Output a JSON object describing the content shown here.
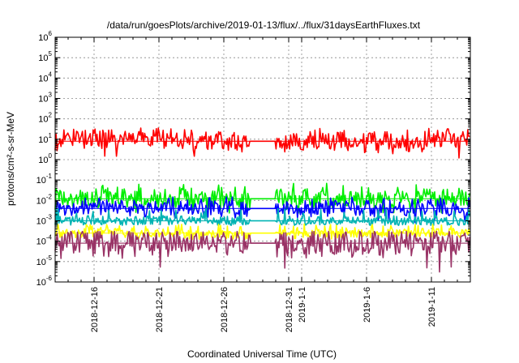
{
  "chart_data": {
    "type": "line",
    "title": "/data/run/goesPlots/archive/2019-01-13/flux/../flux/31daysEarthFluxes.txt",
    "xlabel": "Coordinated Universal Time (UTC)",
    "ylabel": "protons/cm²-s-sr-MeV",
    "y_scale": "log",
    "ylim": [
      1e-06,
      1000000.0
    ],
    "x_range": [
      "2018-12-13",
      "2019-01-14"
    ],
    "grid": true,
    "x_ticks": [
      {
        "date": "2018-12-16",
        "label": "2018-12-16"
      },
      {
        "date": "2018-12-21",
        "label": "2018-12-21"
      },
      {
        "date": "2018-12-26",
        "label": "2018-12-26"
      },
      {
        "date": "2018-12-31",
        "label": "2018-12-31"
      },
      {
        "date": "2019-01-01",
        "label": "2019-1-1"
      },
      {
        "date": "2019-01-06",
        "label": "2019-1-6"
      },
      {
        "date": "2019-01-11",
        "label": "2019-1-11"
      }
    ],
    "y_ticks": [
      {
        "exp": "-6",
        "base": "10"
      },
      {
        "exp": "-5",
        "base": "10"
      },
      {
        "exp": "-4",
        "base": "10"
      },
      {
        "exp": "-3",
        "base": "10"
      },
      {
        "exp": "-2",
        "base": "10"
      },
      {
        "exp": "-1",
        "base": "10"
      },
      {
        "exp": "0",
        "base": "10"
      },
      {
        "exp": "1",
        "base": "10"
      },
      {
        "exp": "2",
        "base": "10"
      },
      {
        "exp": "3",
        "base": "10"
      },
      {
        "exp": "4",
        "base": "10"
      },
      {
        "exp": "5",
        "base": "10"
      },
      {
        "exp": "6",
        "base": "10"
      }
    ],
    "series": [
      {
        "color": "#ff0000",
        "typical": 8,
        "low": 1,
        "high": 35,
        "x": [
          "2018-12-13",
          "2018-12-20",
          "2018-12-27",
          "2019-01-03",
          "2019-01-10",
          "2019-01-14"
        ],
        "y": [
          9,
          12,
          7,
          8,
          6,
          15
        ]
      },
      {
        "color": "#00ee00",
        "typical": 0.012,
        "low": 0.002,
        "high": 0.07,
        "x": [
          "2018-12-13",
          "2018-12-20",
          "2018-12-27",
          "2019-01-03",
          "2019-01-10",
          "2019-01-14"
        ],
        "y": [
          0.012,
          0.012,
          0.01,
          0.012,
          0.012,
          0.012
        ]
      },
      {
        "color": "#0000ff",
        "typical": 0.004,
        "low": 0.0008,
        "high": 0.015,
        "x": [
          "2018-12-13",
          "2018-12-20",
          "2018-12-27",
          "2019-01-03",
          "2019-01-10",
          "2019-01-14"
        ],
        "y": [
          0.004,
          0.004,
          0.0035,
          0.004,
          0.004,
          0.004
        ]
      },
      {
        "color": "#00b3b3",
        "typical": 0.001,
        "low": 0.0006,
        "high": 0.004,
        "x": [
          "2018-12-13",
          "2018-12-20",
          "2018-12-27",
          "2019-01-03",
          "2019-01-10",
          "2019-01-14"
        ],
        "y": [
          0.001,
          0.001,
          0.001,
          0.001,
          0.001,
          0.001
        ]
      },
      {
        "color": "#ffff00",
        "typical": 0.00025,
        "low": 0.00012,
        "high": 0.0007,
        "x": [
          "2018-12-13",
          "2018-12-20",
          "2018-12-27",
          "2019-01-03",
          "2019-01-10",
          "2019-01-14"
        ],
        "y": [
          0.00025,
          0.00025,
          0.0002,
          0.00025,
          0.00025,
          0.00025
        ]
      },
      {
        "color": "#993366",
        "typical": 8e-05,
        "low": 3e-06,
        "high": 0.0003,
        "x": [
          "2018-12-13",
          "2018-12-20",
          "2018-12-27",
          "2019-01-03",
          "2019-01-10",
          "2019-01-14"
        ],
        "y": [
          8e-05,
          8e-05,
          7e-05,
          8e-05,
          8e-05,
          8e-05
        ]
      }
    ]
  }
}
